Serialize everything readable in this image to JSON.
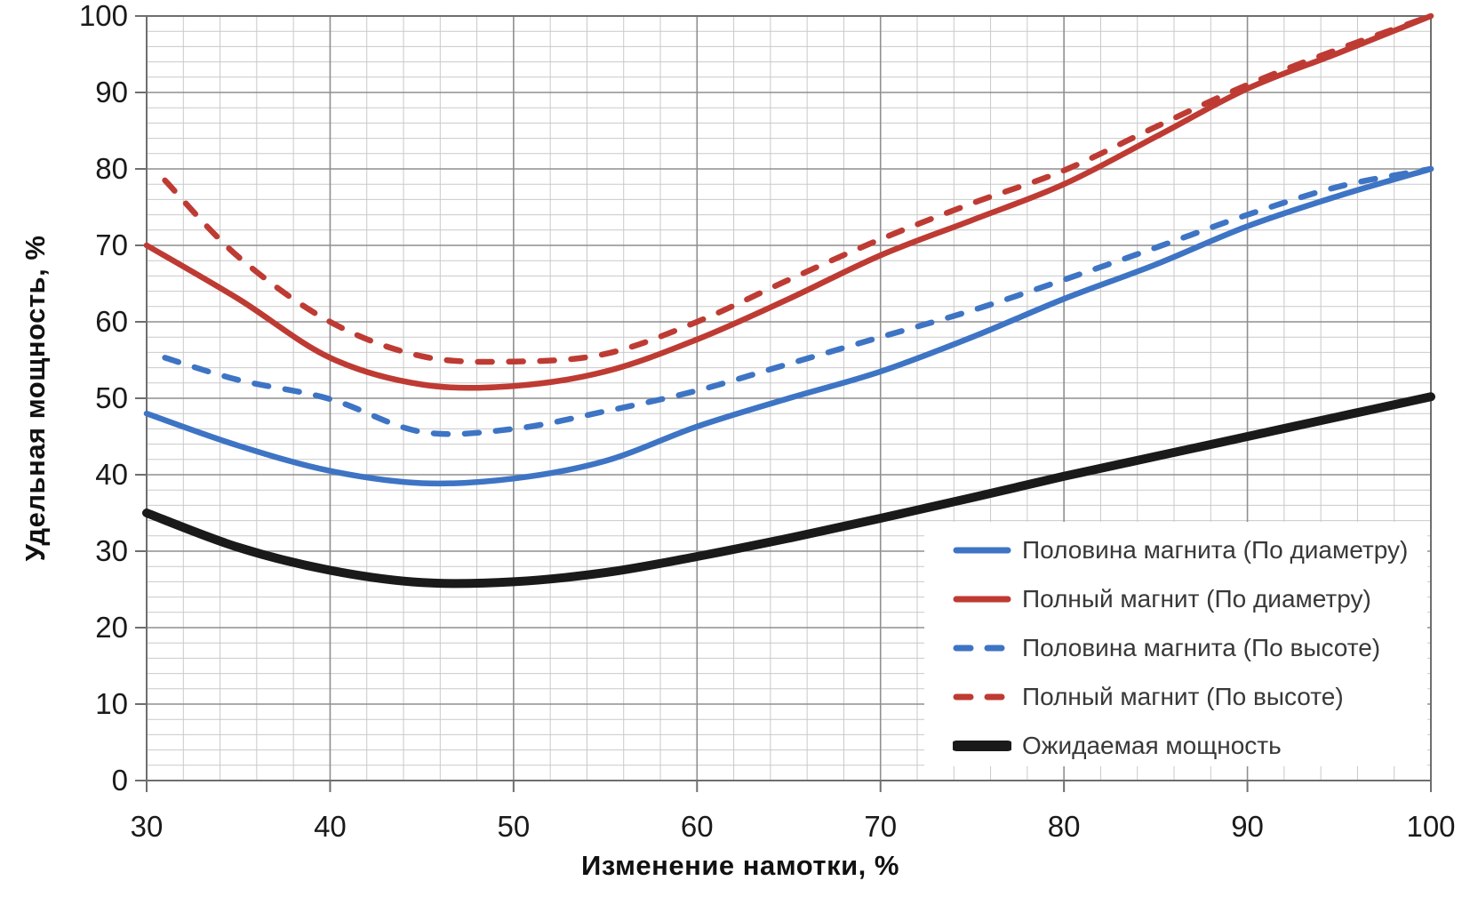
{
  "chart_data": {
    "type": "line",
    "title": "",
    "xlabel": "Изменение намотки, %",
    "ylabel": "Удельная мощность, %",
    "xlim": [
      30,
      100
    ],
    "ylim": [
      0,
      100
    ],
    "x_major_step": 10,
    "x_minor_step": 2,
    "y_major_step": 10,
    "y_minor_step": 2,
    "x_tick_labels": [
      "30",
      "40",
      "50",
      "60",
      "70",
      "80",
      "90",
      "100"
    ],
    "y_tick_labels": [
      "0",
      "10",
      "20",
      "30",
      "40",
      "50",
      "60",
      "70",
      "80",
      "90",
      "100"
    ],
    "grid": "major+minor",
    "legend_position": "inside-lower-right",
    "series": [
      {
        "name": "Половина магнита (По диаметру)",
        "color": "#3E74C4",
        "style": "solid",
        "width": 6.5,
        "x": [
          30,
          35,
          40,
          45,
          50,
          55,
          60,
          65,
          70,
          75,
          80,
          85,
          90,
          95,
          100
        ],
        "y": [
          48,
          43.8,
          40.5,
          38.9,
          39.5,
          41.8,
          46.3,
          50,
          53.5,
          58,
          63,
          67.5,
          72.5,
          76.5,
          80
        ]
      },
      {
        "name": "Полный магнит (По диаметру)",
        "color": "#BE3B33",
        "style": "solid",
        "width": 6.5,
        "x": [
          30,
          35,
          40,
          45,
          50,
          55,
          60,
          65,
          70,
          75,
          80,
          85,
          90,
          95,
          100
        ],
        "y": [
          70,
          63,
          55.3,
          51.8,
          51.6,
          53.5,
          57.7,
          63,
          68.7,
          73.3,
          78,
          84.2,
          90.5,
          95.2,
          100
        ]
      },
      {
        "name": "Половина магнита (По высоте)",
        "color": "#3E74C4",
        "style": "dashed",
        "width": 6.5,
        "x": [
          31,
          35,
          40,
          45,
          50,
          55,
          60,
          65,
          70,
          75,
          80,
          85,
          90,
          95,
          100
        ],
        "y": [
          55.3,
          52.4,
          49.9,
          45.6,
          46,
          48.3,
          51,
          54.5,
          58,
          61.5,
          65.5,
          69.7,
          74,
          77.7,
          80
        ]
      },
      {
        "name": "Полный магнит (По высоте)",
        "color": "#BE3B33",
        "style": "dashed",
        "width": 6.5,
        "x": [
          31,
          35,
          40,
          45,
          50,
          55,
          60,
          65,
          70,
          75,
          80,
          85,
          90,
          95,
          100
        ],
        "y": [
          78.5,
          68.5,
          60,
          55.5,
          54.8,
          55.8,
          60,
          65.5,
          70.8,
          75.5,
          79.8,
          85.5,
          91,
          95.7,
          100
        ]
      },
      {
        "name": "Ожидаемая мощность",
        "color": "#1A1A1A",
        "style": "solid",
        "width": 10,
        "x": [
          30,
          35,
          40,
          45,
          50,
          55,
          60,
          65,
          70,
          75,
          80,
          85,
          90,
          95,
          100
        ],
        "y": [
          35,
          30.5,
          27.5,
          25.9,
          26,
          27.2,
          29.3,
          31.7,
          34.3,
          37,
          39.8,
          42.4,
          45,
          47.6,
          50.2
        ]
      }
    ],
    "colors": {
      "minor_grid": "#C9C9C9",
      "major_grid": "#8F8F8F",
      "axis_border": "#6E6E6E",
      "tick_text": "#1A1A1A"
    }
  }
}
